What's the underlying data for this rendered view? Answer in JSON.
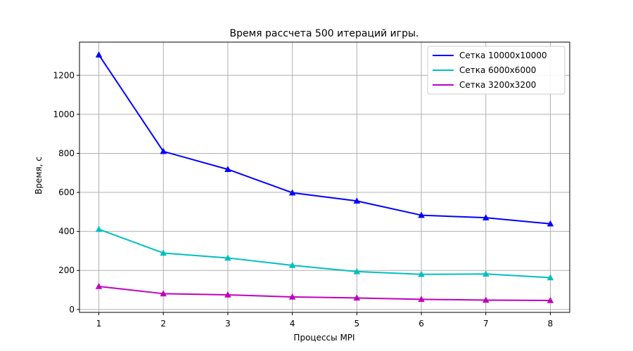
{
  "chart_data": {
    "type": "line",
    "title": "Время рассчета 500 итераций игры.",
    "xlabel": "Процессы MPI",
    "ylabel": "Время, с",
    "x": [
      1,
      2,
      3,
      4,
      5,
      6,
      7,
      8
    ],
    "xlim": [
      0.7,
      8.3
    ],
    "ylim": [
      -15,
      1370
    ],
    "xticks": [
      1,
      2,
      3,
      4,
      5,
      6,
      7,
      8
    ],
    "yticks": [
      0,
      200,
      400,
      600,
      800,
      1000,
      1200
    ],
    "grid": true,
    "legend_position": "top-right",
    "marker": "triangle",
    "series": [
      {
        "name": "Сетка 10000x10000",
        "color": "#0000ff",
        "values": [
          1305,
          810,
          718,
          598,
          556,
          483,
          470,
          439
        ]
      },
      {
        "name": "Сетка 6000x6000",
        "color": "#00bfbf",
        "values": [
          411,
          289,
          264,
          226,
          194,
          180,
          182,
          163
        ]
      },
      {
        "name": "Сетка 3200x3200",
        "color": "#bf00bf",
        "values": [
          118,
          81,
          75,
          64,
          59,
          52,
          48,
          46
        ]
      }
    ]
  }
}
